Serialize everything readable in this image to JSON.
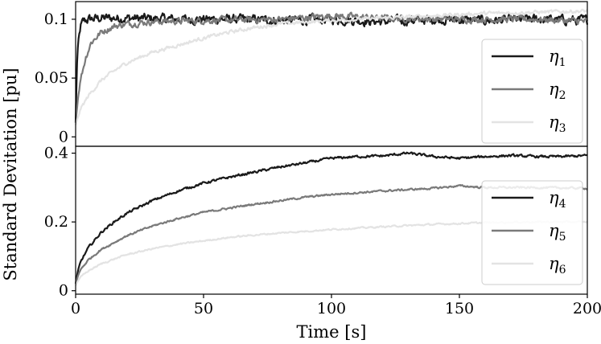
{
  "chart_data": [
    {
      "type": "line",
      "panel": "top",
      "xlim": [
        0,
        200
      ],
      "ylim": [
        -0.008,
        0.115
      ],
      "yticks": [
        0,
        0.05,
        0.1
      ],
      "ytick_labels": [
        "0",
        "0.05",
        "0.1"
      ],
      "legend_position": "right",
      "grid": false,
      "series": [
        {
          "name": "η1",
          "sym": "η",
          "sub": "1",
          "color": "#1a1a1a",
          "x": [
            0,
            0.5,
            1,
            2,
            3,
            5,
            10,
            20,
            40,
            60,
            80,
            100,
            120,
            140,
            160,
            180,
            200
          ],
          "y": [
            0.012,
            0.06,
            0.08,
            0.094,
            0.098,
            0.1,
            0.101,
            0.101,
            0.1,
            0.1,
            0.099,
            0.1,
            0.098,
            0.1,
            0.099,
            0.1,
            0.099
          ],
          "noise": 0.0032
        },
        {
          "name": "η2",
          "sym": "η",
          "sub": "2",
          "color": "#7a7a7a",
          "x": [
            0,
            1,
            2,
            4,
            6,
            10,
            15,
            20,
            30,
            50,
            80,
            100,
            120,
            150,
            180,
            200
          ],
          "y": [
            0.012,
            0.035,
            0.05,
            0.068,
            0.08,
            0.089,
            0.094,
            0.096,
            0.098,
            0.099,
            0.1,
            0.103,
            0.101,
            0.1,
            0.1,
            0.098
          ],
          "noise": 0.0022
        },
        {
          "name": "η3",
          "sym": "η",
          "sub": "3",
          "color": "#e3e3e3",
          "x": [
            0,
            2,
            5,
            10,
            15,
            20,
            30,
            40,
            50,
            60,
            70,
            80,
            100,
            120,
            140,
            160,
            180,
            200
          ],
          "y": [
            0.01,
            0.024,
            0.035,
            0.048,
            0.056,
            0.063,
            0.072,
            0.078,
            0.084,
            0.089,
            0.093,
            0.096,
            0.099,
            0.101,
            0.103,
            0.105,
            0.106,
            0.107
          ],
          "noise": 0.0012
        }
      ]
    },
    {
      "type": "line",
      "panel": "bottom",
      "xlim": [
        0,
        200
      ],
      "ylim": [
        -0.01,
        0.42
      ],
      "xlabel": "Time [s]",
      "ylabel": "Standard Devitation [pu]",
      "xticks": [
        0,
        50,
        100,
        150,
        200
      ],
      "xtick_labels": [
        "0",
        "50",
        "100",
        "150",
        "200"
      ],
      "yticks": [
        0,
        0.2,
        0.4
      ],
      "ytick_labels": [
        "0",
        "0.2",
        "0.4"
      ],
      "legend_position": "right",
      "grid": false,
      "series": [
        {
          "name": "η4",
          "sym": "η",
          "sub": "4",
          "color": "#1a1a1a",
          "x": [
            0,
            1,
            2,
            5,
            10,
            15,
            20,
            30,
            40,
            50,
            60,
            70,
            80,
            90,
            100,
            110,
            120,
            130,
            140,
            150,
            160,
            170,
            180,
            190,
            200
          ],
          "y": [
            0.02,
            0.06,
            0.085,
            0.125,
            0.17,
            0.2,
            0.225,
            0.262,
            0.29,
            0.313,
            0.33,
            0.345,
            0.36,
            0.372,
            0.385,
            0.39,
            0.392,
            0.4,
            0.39,
            0.385,
            0.39,
            0.393,
            0.39,
            0.39,
            0.393
          ],
          "noise": 0.0028
        },
        {
          "name": "η5",
          "sym": "η",
          "sub": "5",
          "color": "#7a7a7a",
          "x": [
            0,
            1,
            2,
            5,
            10,
            15,
            20,
            30,
            40,
            50,
            60,
            70,
            80,
            90,
            100,
            120,
            140,
            150,
            160,
            180,
            200
          ],
          "y": [
            0.02,
            0.045,
            0.062,
            0.09,
            0.12,
            0.14,
            0.16,
            0.188,
            0.21,
            0.228,
            0.24,
            0.252,
            0.262,
            0.272,
            0.28,
            0.29,
            0.298,
            0.305,
            0.3,
            0.3,
            0.298
          ],
          "noise": 0.0022
        },
        {
          "name": "η6",
          "sym": "η",
          "sub": "6",
          "color": "#e3e3e3",
          "x": [
            0,
            1,
            2,
            5,
            10,
            15,
            20,
            30,
            40,
            50,
            60,
            70,
            80,
            100,
            120,
            140,
            160,
            180,
            200
          ],
          "y": [
            0.015,
            0.03,
            0.04,
            0.058,
            0.078,
            0.092,
            0.105,
            0.122,
            0.135,
            0.145,
            0.155,
            0.162,
            0.168,
            0.178,
            0.186,
            0.193,
            0.198,
            0.2,
            0.2
          ],
          "noise": 0.0018
        }
      ]
    }
  ]
}
